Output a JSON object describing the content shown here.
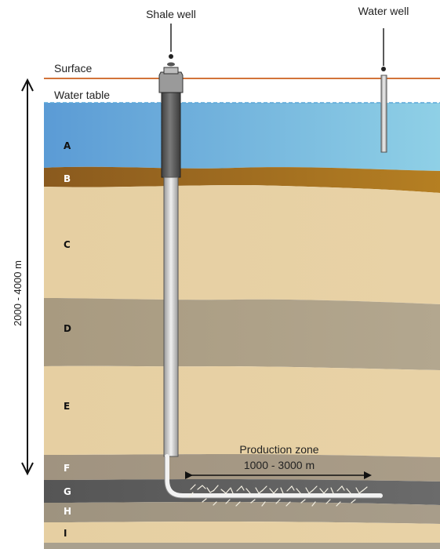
{
  "labels": {
    "shale_well": "Shale well",
    "water_well": "Water well",
    "surface": "Surface",
    "water_table": "Water table",
    "depth": "2000 - 4000 m",
    "production_zone": "Production zone",
    "production_range": "1000 - 3000 m"
  },
  "layers": [
    {
      "id": "A",
      "label": "A",
      "color_left": "#5b9bd5",
      "color_right": "#8fd0e6"
    },
    {
      "id": "B",
      "label": "B",
      "color_left": "#8a5a1e",
      "color_right": "#b57f22"
    },
    {
      "id": "C",
      "label": "C",
      "color_left": "#e6cfa2",
      "color_right": "#e8d2a6"
    },
    {
      "id": "D",
      "label": "D",
      "color_left": "#a89a80",
      "color_right": "#b3a78f"
    },
    {
      "id": "E",
      "label": "E",
      "color_left": "#e6cfa2",
      "color_right": "#e8d2a6"
    },
    {
      "id": "F",
      "label": "F",
      "color_left": "#a09380",
      "color_right": "#aa9d88"
    },
    {
      "id": "G",
      "label": "G",
      "color_left": "#555555",
      "color_right": "#6b6b6b"
    },
    {
      "id": "H",
      "label": "H",
      "color_left": "#9e937f",
      "color_right": "#a89d8a"
    },
    {
      "id": "I",
      "label": "I",
      "color_left": "#e6cfa2",
      "color_right": "#e8d2a6"
    }
  ],
  "colors": {
    "surface_line": "#d2743a",
    "water_table_line": "#5aa7d8",
    "casing": "#5a5a5a",
    "pipe": "#d6d6d6",
    "arrow": "#111111"
  }
}
